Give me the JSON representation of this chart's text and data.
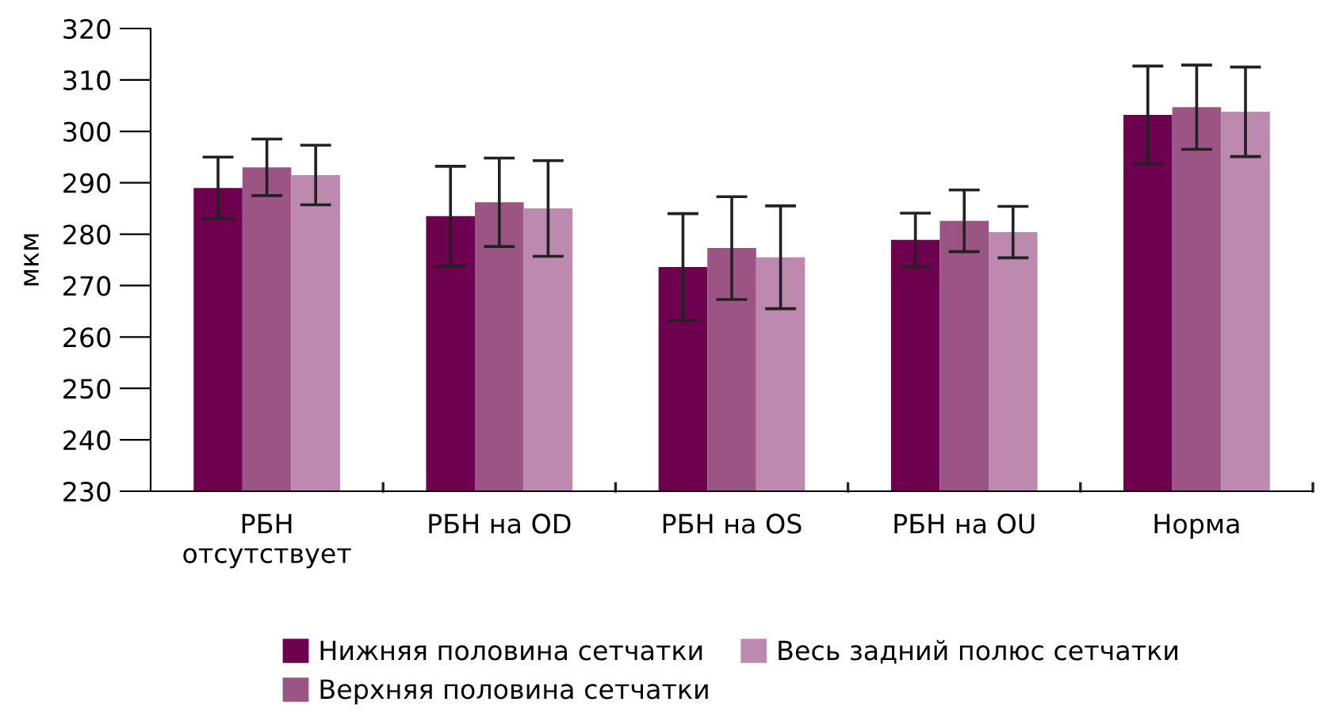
{
  "chart_data": {
    "type": "bar",
    "ylabel": "мкм",
    "categories": [
      "РБН\nотсутствует",
      "РБН на OD",
      "РБН на OS",
      "РБН на OU",
      "Норма"
    ],
    "series": [
      {
        "name": "Нижняя половина сетчатки",
        "color": "#6e0050",
        "values": [
          289.0,
          283.5,
          273.6,
          278.9,
          303.2
        ],
        "errors": [
          6.0,
          9.7,
          10.4,
          5.2,
          9.5
        ]
      },
      {
        "name": "Верхняя половина сетчатки",
        "color": "#9a5585",
        "values": [
          293.0,
          286.2,
          277.3,
          282.6,
          304.7
        ],
        "errors": [
          5.5,
          8.6,
          10.0,
          6.0,
          8.2
        ]
      },
      {
        "name": "Весь задний полюс сетчатки",
        "color": "#bb8aae",
        "values": [
          291.5,
          285.0,
          275.5,
          280.4,
          303.8
        ],
        "errors": [
          5.8,
          9.3,
          10.0,
          5.0,
          8.7
        ]
      }
    ],
    "ylim": [
      230,
      320
    ],
    "yticks": [
      230,
      240,
      250,
      260,
      270,
      280,
      290,
      300,
      310,
      320
    ],
    "grid": false,
    "legend": "bottom"
  }
}
